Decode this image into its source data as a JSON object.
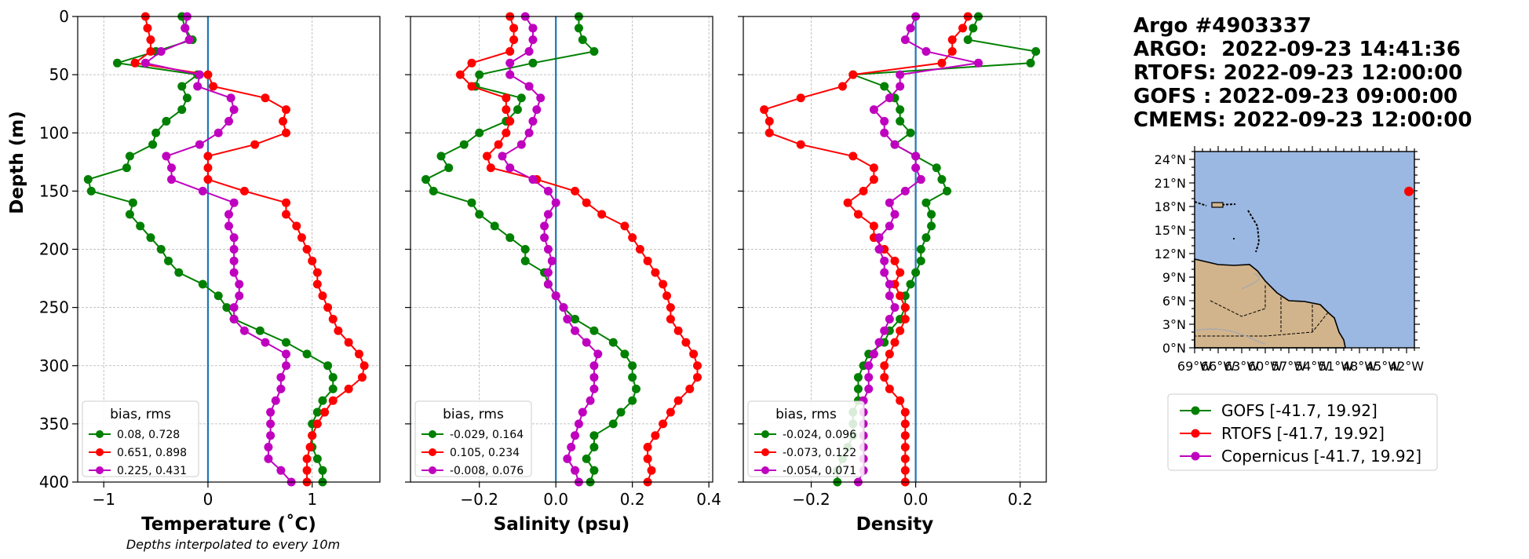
{
  "header": {
    "lines": [
      "Argo #4903337",
      "ARGO:  2022-09-23 14:41:36",
      "RTOFS: 2022-09-23 12:00:00",
      "GOFS : 2022-09-23 09:00:00",
      "CMEMS: 2022-09-23 12:00:00"
    ]
  },
  "ylabel": "Depth (m)",
  "footnote": "Depths interpolated to every 10m",
  "colors": {
    "gofs": "#008000",
    "rtofs": "#ff0000",
    "copernicus": "#bf00bf",
    "zero": "#1f77b4",
    "ocean": "#9ab8e2",
    "land": "#d2b48c",
    "argo": "#ff0000"
  },
  "chart_data": [
    {
      "type": "line",
      "xlabel": "Temperature (˚C)",
      "ylim": [
        400,
        0
      ],
      "xlim": [
        -1.25,
        1.65
      ],
      "xticks": [
        -1,
        0,
        1
      ],
      "xticklabels": [
        "−1",
        "0",
        "1"
      ],
      "yticks": [
        0,
        50,
        100,
        150,
        200,
        250,
        300,
        350,
        400
      ],
      "grid": true,
      "depth": [
        0,
        10,
        20,
        30,
        40,
        50,
        60,
        70,
        80,
        90,
        100,
        110,
        120,
        130,
        140,
        150,
        160,
        170,
        180,
        190,
        200,
        210,
        220,
        230,
        240,
        250,
        260,
        270,
        280,
        290,
        300,
        310,
        320,
        330,
        340,
        350,
        360,
        370,
        380,
        390,
        400
      ],
      "legend": {
        "title": "bias, rms",
        "placement": "lower-left",
        "entries": [
          "0.08, 0.728",
          "0.651, 0.898",
          "0.225, 0.431"
        ]
      },
      "series": [
        {
          "key": "gofs",
          "values": [
            -0.25,
            -0.22,
            -0.15,
            -0.5,
            -0.87,
            -0.1,
            -0.25,
            -0.2,
            -0.25,
            -0.4,
            -0.5,
            -0.53,
            -0.75,
            -0.78,
            -1.15,
            -1.12,
            -0.72,
            -0.75,
            -0.65,
            -0.55,
            -0.45,
            -0.38,
            -0.28,
            -0.05,
            0.1,
            0.18,
            0.25,
            0.5,
            0.75,
            0.95,
            1.15,
            1.2,
            1.2,
            1.1,
            1.05,
            1.0,
            1.0,
            1.0,
            1.05,
            1.1,
            1.1
          ]
        },
        {
          "key": "rtofs",
          "values": [
            -0.6,
            -0.58,
            -0.55,
            -0.55,
            -0.7,
            0.0,
            0.05,
            0.55,
            0.75,
            0.72,
            0.75,
            0.45,
            0.0,
            0.0,
            0.0,
            0.35,
            0.75,
            0.75,
            0.85,
            0.9,
            0.95,
            1.0,
            1.05,
            1.05,
            1.1,
            1.15,
            1.2,
            1.25,
            1.35,
            1.45,
            1.5,
            1.48,
            1.35,
            1.2,
            1.12,
            1.05,
            1.0,
            0.98,
            0.95,
            0.95,
            0.95
          ]
        },
        {
          "key": "copernicus",
          "values": [
            -0.2,
            -0.22,
            -0.18,
            -0.45,
            -0.6,
            -0.08,
            -0.1,
            0.22,
            0.25,
            0.2,
            0.1,
            -0.08,
            -0.4,
            -0.35,
            -0.35,
            -0.05,
            0.25,
            0.2,
            0.2,
            0.25,
            0.25,
            0.25,
            0.25,
            0.3,
            0.3,
            0.25,
            0.25,
            0.35,
            0.55,
            0.75,
            0.75,
            0.7,
            0.7,
            0.65,
            0.6,
            0.6,
            0.6,
            0.58,
            0.58,
            0.7,
            0.8
          ]
        }
      ]
    },
    {
      "type": "line",
      "xlabel": "Salinity (psu)",
      "ylim": [
        400,
        0
      ],
      "xlim": [
        -0.38,
        0.41
      ],
      "xticks": [
        -0.2,
        0.0,
        0.2,
        0.4
      ],
      "xticklabels": [
        "−0.2",
        "0.0",
        "0.2",
        "0.4"
      ],
      "grid": true,
      "depth": [
        0,
        10,
        20,
        30,
        40,
        50,
        60,
        70,
        80,
        90,
        100,
        110,
        120,
        130,
        140,
        150,
        160,
        170,
        180,
        190,
        200,
        210,
        220,
        230,
        240,
        250,
        260,
        270,
        280,
        290,
        300,
        310,
        320,
        330,
        340,
        350,
        360,
        370,
        380,
        390,
        400
      ],
      "legend": {
        "title": "bias, rms",
        "placement": "lower-left",
        "entries": [
          "-0.029, 0.164",
          "0.105, 0.234",
          "-0.008, 0.076"
        ]
      },
      "series": [
        {
          "key": "gofs",
          "values": [
            0.06,
            0.06,
            0.07,
            0.1,
            -0.06,
            -0.2,
            -0.21,
            -0.09,
            -0.1,
            -0.13,
            -0.2,
            -0.24,
            -0.3,
            -0.28,
            -0.34,
            -0.32,
            -0.22,
            -0.2,
            -0.16,
            -0.12,
            -0.08,
            -0.08,
            -0.03,
            -0.02,
            0.0,
            0.02,
            0.05,
            0.1,
            0.15,
            0.18,
            0.2,
            0.2,
            0.21,
            0.2,
            0.17,
            0.15,
            0.1,
            0.1,
            0.08,
            0.1,
            0.09
          ]
        },
        {
          "key": "rtofs",
          "values": [
            -0.12,
            -0.11,
            -0.11,
            -0.12,
            -0.22,
            -0.25,
            -0.22,
            -0.13,
            -0.13,
            -0.12,
            -0.13,
            -0.15,
            -0.18,
            -0.17,
            -0.05,
            0.05,
            0.08,
            0.12,
            0.18,
            0.2,
            0.22,
            0.24,
            0.26,
            0.28,
            0.29,
            0.3,
            0.3,
            0.32,
            0.34,
            0.36,
            0.37,
            0.37,
            0.35,
            0.32,
            0.3,
            0.28,
            0.26,
            0.24,
            0.24,
            0.25,
            0.24
          ]
        },
        {
          "key": "copernicus",
          "values": [
            -0.08,
            -0.06,
            -0.06,
            -0.07,
            -0.12,
            -0.12,
            -0.07,
            -0.04,
            -0.05,
            -0.06,
            -0.07,
            -0.09,
            -0.14,
            -0.12,
            -0.06,
            -0.02,
            0.0,
            -0.02,
            -0.03,
            -0.03,
            -0.02,
            -0.01,
            -0.02,
            -0.02,
            0.0,
            0.02,
            0.03,
            0.05,
            0.08,
            0.11,
            0.1,
            0.1,
            0.1,
            0.09,
            0.07,
            0.06,
            0.05,
            0.04,
            0.03,
            0.05,
            0.06
          ]
        }
      ]
    },
    {
      "type": "line",
      "xlabel": "Density",
      "ylim": [
        400,
        0
      ],
      "xlim": [
        -0.33,
        0.25
      ],
      "xticks": [
        -0.2,
        0.0,
        0.2
      ],
      "xticklabels": [
        "−0.2",
        "0.0",
        "0.2"
      ],
      "grid": true,
      "depth": [
        0,
        10,
        20,
        30,
        40,
        50,
        60,
        70,
        80,
        90,
        100,
        110,
        120,
        130,
        140,
        150,
        160,
        170,
        180,
        190,
        200,
        210,
        220,
        230,
        240,
        250,
        260,
        270,
        280,
        290,
        300,
        310,
        320,
        330,
        340,
        350,
        360,
        370,
        380,
        390,
        400
      ],
      "legend": {
        "title": "bias, rms",
        "placement": "lower-left",
        "entries": [
          "-0.024, 0.096",
          "-0.073, 0.122",
          "-0.054, 0.071"
        ]
      },
      "series": [
        {
          "key": "gofs",
          "values": [
            0.12,
            0.11,
            0.1,
            0.23,
            0.22,
            -0.12,
            -0.06,
            -0.04,
            -0.03,
            -0.03,
            -0.01,
            -0.04,
            0.0,
            0.04,
            0.05,
            0.06,
            0.02,
            0.03,
            0.03,
            0.02,
            0.01,
            0.01,
            0.0,
            -0.01,
            -0.02,
            -0.02,
            -0.03,
            -0.05,
            -0.06,
            -0.09,
            -0.1,
            -0.11,
            -0.11,
            -0.11,
            -0.12,
            -0.12,
            -0.12,
            -0.13,
            -0.14,
            -0.15,
            -0.15
          ]
        },
        {
          "key": "rtofs",
          "values": [
            0.1,
            0.09,
            0.07,
            0.07,
            0.05,
            -0.12,
            -0.14,
            -0.22,
            -0.29,
            -0.28,
            -0.28,
            -0.22,
            -0.12,
            -0.08,
            -0.08,
            -0.1,
            -0.13,
            -0.11,
            -0.08,
            -0.08,
            -0.06,
            -0.04,
            -0.03,
            -0.04,
            -0.03,
            -0.02,
            -0.02,
            -0.03,
            -0.04,
            -0.05,
            -0.06,
            -0.06,
            -0.05,
            -0.03,
            -0.02,
            -0.02,
            -0.02,
            -0.02,
            -0.02,
            -0.02,
            -0.02
          ]
        },
        {
          "key": "copernicus",
          "values": [
            0.0,
            -0.01,
            -0.02,
            0.02,
            0.12,
            -0.03,
            -0.03,
            -0.05,
            -0.08,
            -0.06,
            -0.06,
            -0.04,
            0.0,
            0.0,
            0.01,
            -0.02,
            -0.05,
            -0.04,
            -0.05,
            -0.07,
            -0.07,
            -0.06,
            -0.06,
            -0.05,
            -0.05,
            -0.04,
            -0.05,
            -0.06,
            -0.07,
            -0.08,
            -0.09,
            -0.09,
            -0.09,
            -0.1,
            -0.1,
            -0.1,
            -0.1,
            -0.1,
            -0.1,
            -0.1,
            -0.11
          ]
        }
      ]
    },
    {
      "type": "map",
      "lat_ticks": [
        "0°N",
        "3°N",
        "6°N",
        "9°N",
        "12°N",
        "15°N",
        "18°N",
        "21°N",
        "24°N"
      ],
      "lat_values": [
        0,
        3,
        6,
        9,
        12,
        15,
        18,
        21,
        24
      ],
      "lon_ticks": [
        "69°W",
        "66°W",
        "63°W",
        "60°W",
        "57°W",
        "54°W",
        "51°W",
        "48°W",
        "45°W",
        "42°W"
      ],
      "lon_values": [
        -69,
        -66,
        -63,
        -60,
        -57,
        -54,
        -51,
        -48,
        -45,
        -42
      ],
      "xlim": [
        -69,
        -41
      ],
      "ylim": [
        0,
        25
      ],
      "argo_location": {
        "lon": -41.7,
        "lat": 19.92
      }
    }
  ],
  "legend": {
    "entries": [
      {
        "key": "gofs",
        "label": "GOFS [-41.7, 19.92]"
      },
      {
        "key": "rtofs",
        "label": "RTOFS [-41.7, 19.92]"
      },
      {
        "key": "copernicus",
        "label": "Copernicus [-41.7, 19.92]"
      }
    ]
  }
}
